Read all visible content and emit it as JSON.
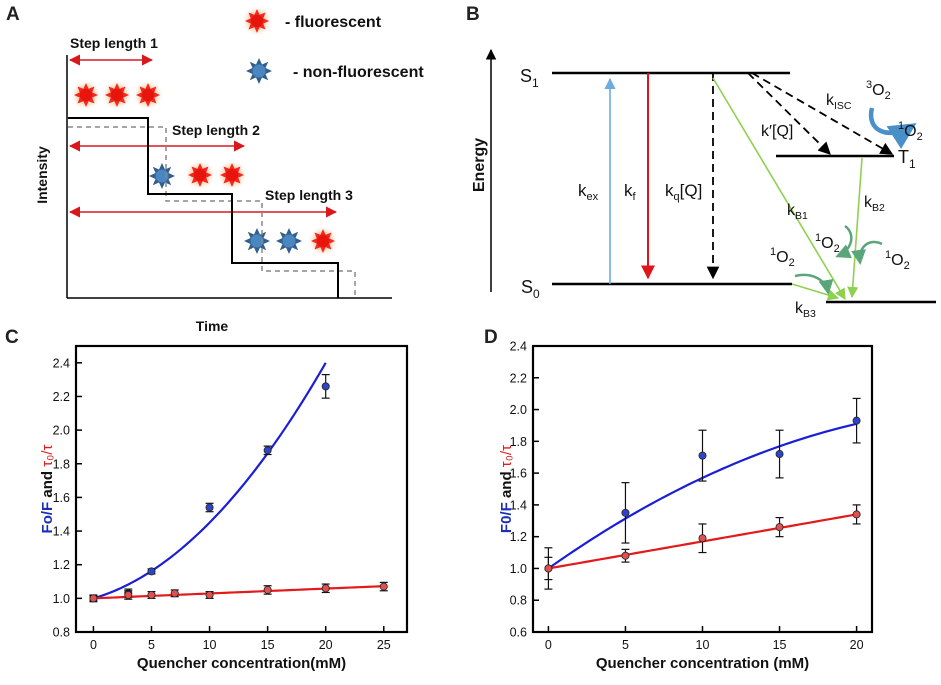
{
  "panels": {
    "A": "A",
    "B": "B",
    "C": "C",
    "D": "D"
  },
  "panelA": {
    "legend_fluorescent": "- fluorescent",
    "legend_non_fluorescent": "- non-fluorescent",
    "step1": "Step length 1",
    "step2": "Step length 2",
    "step3": "Step length 3",
    "ylabel": "Intensity",
    "xlabel": "Time",
    "colors": {
      "fluorescent": "#e8231b",
      "non_fluorescent": "#2f5f8f",
      "arrow": "#d9181e",
      "trace": "#000000",
      "dashed": "#888888"
    }
  },
  "panelB": {
    "axis": "Energy",
    "S1": "S",
    "S1_sub": "1",
    "S0": "S",
    "S0_sub": "0",
    "T1": "T",
    "T1_sub": "1",
    "kex": "k",
    "kex_sub": "ex",
    "kf": "k",
    "kf_sub": "f",
    "kq": "k",
    "kq_sub": "q",
    "kq_rest": "[Q]",
    "kprime": "k′[Q]",
    "kisc": "k",
    "kisc_sub": "ISC",
    "kb1": "k",
    "kb1_sub": "B1",
    "kb2": "k",
    "kb2_sub": "B2",
    "kb3": "k",
    "kb3_sub": "B3",
    "o2_triplet_sup": "3",
    "o2_singlet_sup": "1",
    "o2": "O",
    "o2_sub": "2",
    "colors": {
      "excitation": "#6aaee0",
      "fluorescence": "#e0141b",
      "bimolecular": "#8fd14f",
      "curl": "#4a90c8"
    }
  },
  "chart_data": [
    {
      "id": "C",
      "type": "scatter",
      "xlabel": "Quencher concentration(mM)",
      "ylabel_part1": "Fo/F",
      "ylabel_part2": " and ",
      "ylabel_part3": "τ₀/τ",
      "xlim": [
        -1.5,
        27
      ],
      "ylim": [
        0.8,
        2.5
      ],
      "xticks": [
        0,
        5,
        10,
        15,
        20,
        25
      ],
      "yticks": [
        0.8,
        1.0,
        1.2,
        1.4,
        1.6,
        1.8,
        2.0,
        2.2,
        2.4
      ],
      "ytick_labels": [
        "0.8",
        "1.0",
        "1.2",
        "1.4",
        "1.6",
        "1.8",
        "2.0",
        "2.2",
        "2.4"
      ],
      "series": [
        {
          "name": "Fo/F",
          "color": "#1a1fd6",
          "marker": "#2d46c8",
          "x": [
            0,
            3,
            5,
            10,
            15,
            20
          ],
          "y": [
            1.0,
            1.03,
            1.16,
            1.54,
            1.88,
            2.26
          ],
          "err": [
            0.015,
            0.025,
            0.015,
            0.025,
            0.025,
            0.07
          ],
          "fit": {
            "kind": "poly2",
            "a": 1.0,
            "b": 0.02,
            "c": 0.0025,
            "x0": 0,
            "x1": 20
          }
        },
        {
          "name": "τ₀/τ",
          "color": "#e31a1a",
          "marker": "#e05050",
          "x": [
            0,
            3,
            5,
            7,
            10,
            15,
            20,
            25
          ],
          "y": [
            1.0,
            1.02,
            1.02,
            1.03,
            1.02,
            1.05,
            1.06,
            1.07
          ],
          "err": [
            0.02,
            0.025,
            0.02,
            0.02,
            0.02,
            0.025,
            0.025,
            0.025
          ],
          "fit": {
            "kind": "poly2",
            "a": 1.0,
            "b": 0.0029,
            "c": 0.0,
            "x0": 0,
            "x1": 25
          }
        }
      ]
    },
    {
      "id": "D",
      "type": "scatter",
      "xlabel": "Quencher concentration (mM)",
      "ylabel_part1": "F0/F",
      "ylabel_part2": " and ",
      "ylabel_part3": "τ₀/τ",
      "xlim": [
        -1,
        21
      ],
      "ylim": [
        0.6,
        2.4
      ],
      "xticks": [
        0,
        5,
        10,
        15,
        20
      ],
      "yticks": [
        0.6,
        0.8,
        1.0,
        1.2,
        1.4,
        1.6,
        1.8,
        2.0,
        2.2,
        2.4
      ],
      "ytick_labels": [
        "0.6",
        "0.8",
        "1.0",
        "1.2",
        "1.4",
        "1.6",
        "1.8",
        "2.0",
        "2.2",
        "2.4"
      ],
      "series": [
        {
          "name": "F0/F",
          "color": "#1a1fd6",
          "marker": "#2d46c8",
          "x": [
            0,
            5,
            10,
            15,
            20
          ],
          "y": [
            1.0,
            1.35,
            1.71,
            1.72,
            1.93
          ],
          "err": [
            0.13,
            0.19,
            0.16,
            0.15,
            0.14
          ],
          "fit": {
            "kind": "poly2",
            "a": 1.0,
            "b": 0.0685,
            "c": -0.00115,
            "x0": 0,
            "x1": 20
          }
        },
        {
          "name": "τ₀/τ",
          "color": "#e31a1a",
          "marker": "#e05050",
          "x": [
            0,
            5,
            10,
            15,
            20
          ],
          "y": [
            1.0,
            1.08,
            1.19,
            1.26,
            1.34
          ],
          "err": [
            0.07,
            0.04,
            0.09,
            0.06,
            0.06
          ],
          "fit": {
            "kind": "poly2",
            "a": 1.0,
            "b": 0.017,
            "c": 0.0,
            "x0": 0,
            "x1": 20
          }
        }
      ]
    }
  ]
}
